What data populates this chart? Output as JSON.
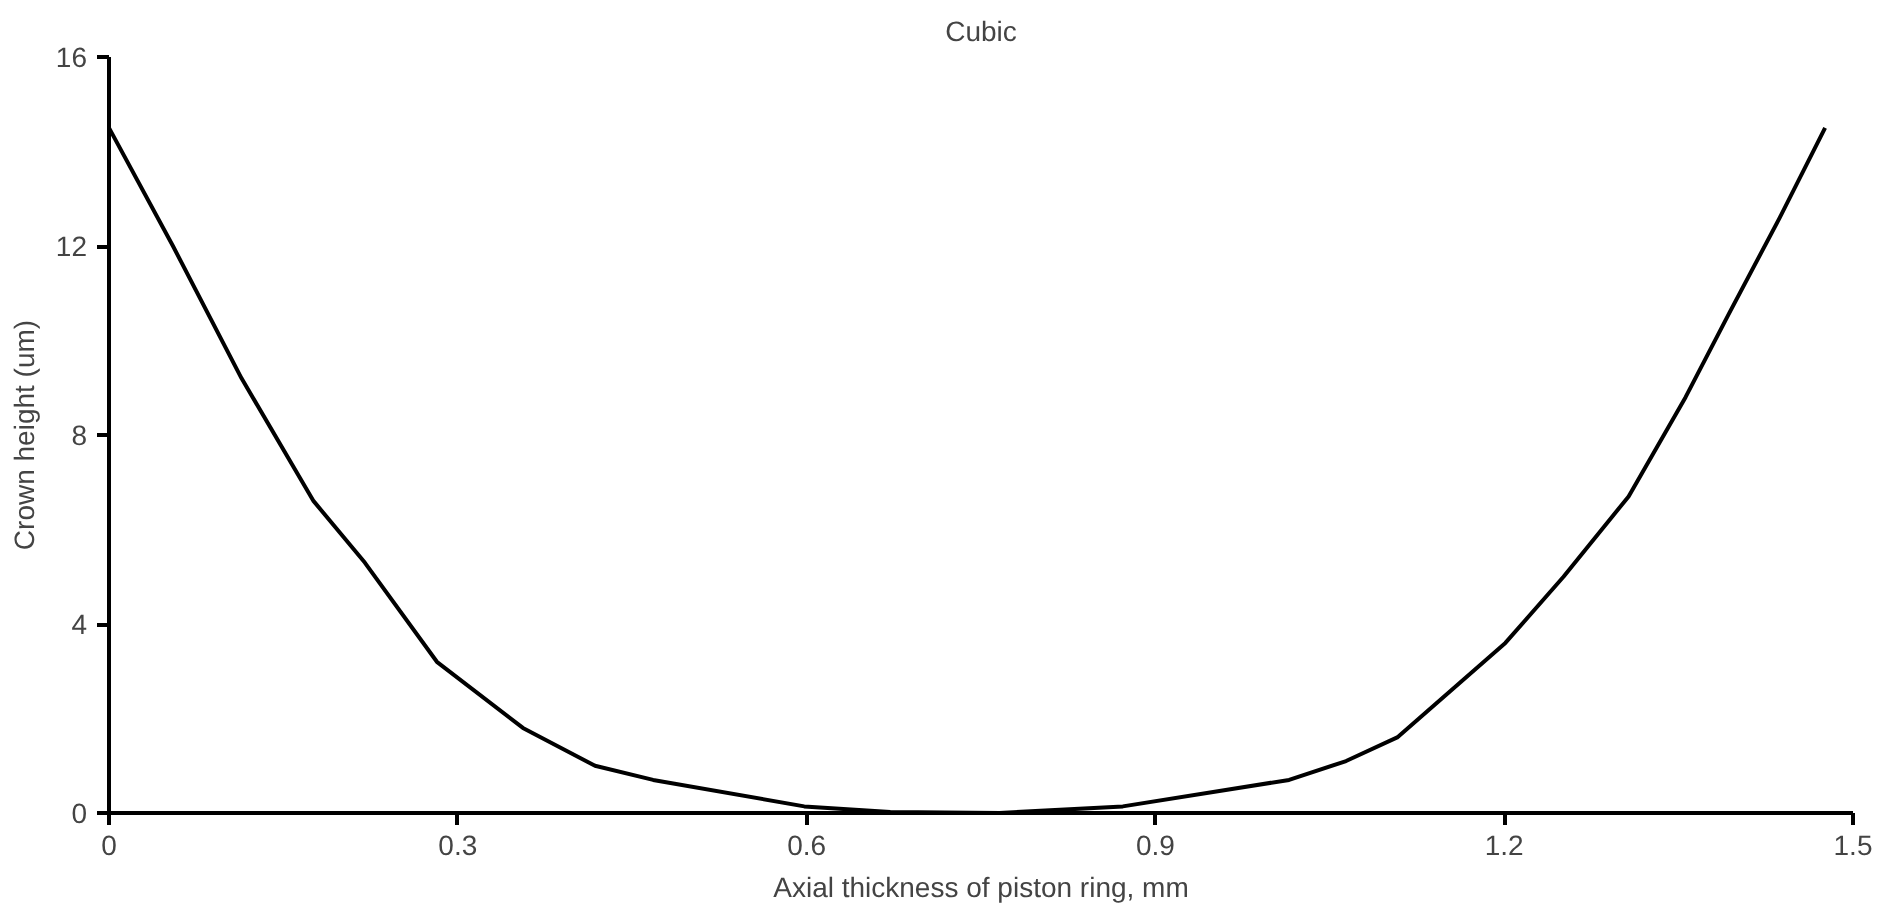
{
  "chart_data": {
    "type": "line",
    "title": "Cubic",
    "xlabel": "Axial thickness of piston ring, mm",
    "ylabel": "Crown height (um)",
    "xlim": [
      0,
      1.5
    ],
    "xticks": [
      0,
      0.3,
      0.6,
      0.9,
      1.2,
      1.5
    ],
    "ylim": [
      0,
      16
    ],
    "yticks": [
      0,
      4,
      8,
      12,
      16
    ],
    "grid": false,
    "marker": "none",
    "line_style": "solid",
    "series": [
      {
        "color": "#000000",
        "x": [
          0,
          0.055,
          0.114,
          0.176,
          0.22,
          0.282,
          0.356,
          0.418,
          0.468,
          0.598,
          0.672,
          0.766,
          0.872,
          1.015,
          1.064,
          1.108,
          1.201,
          1.251,
          1.307,
          1.356,
          1.394,
          1.437,
          1.476
        ],
        "values": [
          14.5,
          12.0,
          9.2,
          6.6,
          5.3,
          3.2,
          1.8,
          1.0,
          0.7,
          0.14,
          0.02,
          0,
          0.14,
          0.7,
          1.1,
          1.6,
          3.6,
          5.0,
          6.7,
          8.8,
          10.6,
          12.6,
          14.5
        ]
      }
    ]
  }
}
